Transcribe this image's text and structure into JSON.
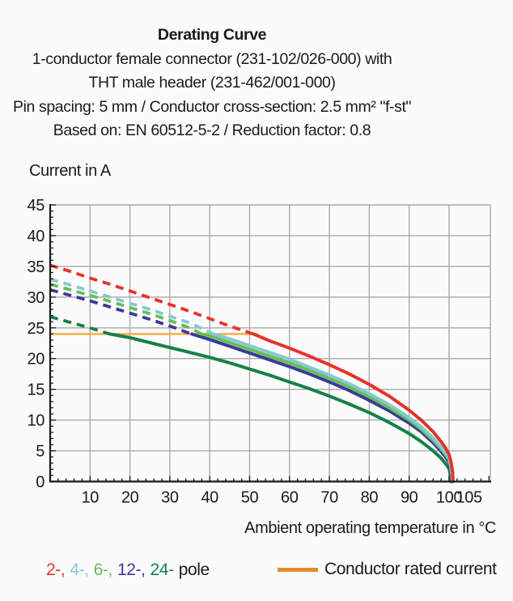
{
  "header": {
    "title": "Derating Curve",
    "line2": "1-conductor female connector (231-102/026-000) with",
    "line3": "THT male header (231-462/001-000)",
    "line4": "Pin spacing: 5 mm / Conductor cross-section: 2.5 mm² \"f-st\"",
    "line5": "Based on: EN 60512-5-2 / Reduction factor: 0.8"
  },
  "colors": {
    "background": "#fbfbfb",
    "grid": "#a9a9a9",
    "axis": "#1a1a1a",
    "text": "#1a1a1a",
    "pole2": "#E6332A",
    "pole4": "#82CAD2",
    "pole6": "#67BE54",
    "pole12": "#3A3A98",
    "pole24": "#168049",
    "rated_line": "#F7AF45",
    "rated_swatch": "#E78B2F"
  },
  "legend": {
    "pole_items": [
      {
        "label": "2-,",
        "color": "#E6332A"
      },
      {
        "label": "4-,",
        "color": "#82CAD2"
      },
      {
        "label": "6-,",
        "color": "#67BE54"
      },
      {
        "label": "12-,",
        "color": "#3A3A98"
      },
      {
        "label": "24-",
        "color": "#168049"
      },
      {
        "label": "pole",
        "color": "#1a1a1a"
      }
    ],
    "rated_label": "Conductor rated current"
  },
  "chart_data": {
    "type": "line",
    "title": "Derating Curve",
    "xlabel": "Ambient operating temperature in °C",
    "ylabel": "Current in A",
    "x_axis": {
      "min": 0,
      "max": 110.35,
      "major_tick_step": 10,
      "minor_tick_step": 2,
      "tick_labels": [
        10,
        20,
        30,
        40,
        50,
        60,
        70,
        80,
        90,
        100,
        105
      ]
    },
    "y_axis": {
      "min": 0,
      "max": 45,
      "major_tick_step": 5,
      "minor_tick_step": 1,
      "tick_labels": [
        0,
        5,
        10,
        15,
        20,
        25,
        30,
        35,
        40,
        45
      ]
    },
    "grid": true,
    "rated_current": {
      "value": 24,
      "x_start": 0,
      "x_end": 52,
      "label": "Conductor rated current"
    },
    "series": [
      {
        "name": "24-pole",
        "color": "#168049",
        "transition_temp": 15,
        "points": [
          [
            0,
            26.8
          ],
          [
            5,
            25.9
          ],
          [
            10,
            25.0
          ],
          [
            15,
            24.0
          ],
          [
            20,
            23.4
          ],
          [
            25,
            22.6
          ],
          [
            30,
            21.8
          ],
          [
            35,
            21.0
          ],
          [
            40,
            20.2
          ],
          [
            45,
            19.3
          ],
          [
            50,
            18.3
          ],
          [
            55,
            17.3
          ],
          [
            60,
            16.2
          ],
          [
            65,
            15.1
          ],
          [
            70,
            13.9
          ],
          [
            75,
            12.6
          ],
          [
            80,
            11.2
          ],
          [
            85,
            9.6
          ],
          [
            90,
            7.8
          ],
          [
            93,
            6.5
          ],
          [
            96,
            5.0
          ],
          [
            98,
            3.8
          ],
          [
            99,
            3.0
          ],
          [
            100,
            2.1
          ],
          [
            100.2,
            1.5
          ],
          [
            100.5,
            0
          ]
        ]
      },
      {
        "name": "12-pole",
        "color": "#3A3A98",
        "transition_temp": 35.5,
        "points": [
          [
            0,
            31.2
          ],
          [
            5,
            30.3
          ],
          [
            10,
            29.4
          ],
          [
            15,
            28.4
          ],
          [
            20,
            27.4
          ],
          [
            25,
            26.4
          ],
          [
            30,
            25.3
          ],
          [
            35,
            24.1
          ],
          [
            35.5,
            24.0
          ],
          [
            40,
            23.1
          ],
          [
            45,
            22.0
          ],
          [
            50,
            20.9
          ],
          [
            55,
            19.8
          ],
          [
            60,
            18.7
          ],
          [
            65,
            17.5
          ],
          [
            70,
            16.2
          ],
          [
            75,
            14.8
          ],
          [
            80,
            13.2
          ],
          [
            85,
            11.5
          ],
          [
            90,
            9.5
          ],
          [
            93,
            8.1
          ],
          [
            96,
            6.3
          ],
          [
            98,
            4.9
          ],
          [
            99,
            4.1
          ],
          [
            100,
            3.1
          ],
          [
            100.3,
            2.2
          ],
          [
            100.6,
            0.8
          ],
          [
            100.7,
            0
          ]
        ]
      },
      {
        "name": "6-pole",
        "color": "#67BE54",
        "transition_temp": 38,
        "points": [
          [
            0,
            32.1
          ],
          [
            5,
            31.2
          ],
          [
            10,
            30.3
          ],
          [
            15,
            29.3
          ],
          [
            20,
            28.3
          ],
          [
            25,
            27.3
          ],
          [
            30,
            26.2
          ],
          [
            35,
            25.0
          ],
          [
            38,
            24.0
          ],
          [
            40,
            23.7
          ],
          [
            45,
            22.6
          ],
          [
            50,
            21.5
          ],
          [
            55,
            20.4
          ],
          [
            60,
            19.3
          ],
          [
            65,
            18.1
          ],
          [
            70,
            16.8
          ],
          [
            75,
            15.4
          ],
          [
            80,
            13.8
          ],
          [
            85,
            12.0
          ],
          [
            90,
            10.0
          ],
          [
            93,
            8.5
          ],
          [
            96,
            6.7
          ],
          [
            98,
            5.3
          ],
          [
            99,
            4.5
          ],
          [
            100,
            3.5
          ],
          [
            100.4,
            2.5
          ],
          [
            100.7,
            1.0
          ],
          [
            100.8,
            0
          ]
        ]
      },
      {
        "name": "4-pole",
        "color": "#82CAD2",
        "transition_temp": 41,
        "points": [
          [
            0,
            32.9
          ],
          [
            5,
            32.0
          ],
          [
            10,
            31.0
          ],
          [
            15,
            30.0
          ],
          [
            20,
            29.0
          ],
          [
            25,
            28.0
          ],
          [
            30,
            26.9
          ],
          [
            35,
            25.8
          ],
          [
            40,
            24.3
          ],
          [
            41,
            24.0
          ],
          [
            45,
            23.2
          ],
          [
            50,
            22.1
          ],
          [
            55,
            21.0
          ],
          [
            60,
            19.9
          ],
          [
            65,
            18.6
          ],
          [
            70,
            17.3
          ],
          [
            75,
            15.9
          ],
          [
            80,
            14.3
          ],
          [
            85,
            12.5
          ],
          [
            90,
            10.4
          ],
          [
            93,
            8.9
          ],
          [
            96,
            7.1
          ],
          [
            98,
            5.6
          ],
          [
            99,
            4.8
          ],
          [
            100,
            3.8
          ],
          [
            100.4,
            2.8
          ],
          [
            100.8,
            1.2
          ],
          [
            100.9,
            0
          ]
        ]
      },
      {
        "name": "2-pole",
        "color": "#E6332A",
        "transition_temp": 51,
        "points": [
          [
            0,
            35.2
          ],
          [
            5,
            34.2
          ],
          [
            10,
            33.1
          ],
          [
            15,
            32.1
          ],
          [
            20,
            31.0
          ],
          [
            25,
            29.9
          ],
          [
            30,
            28.8
          ],
          [
            35,
            27.7
          ],
          [
            40,
            26.5
          ],
          [
            45,
            25.3
          ],
          [
            50,
            24.2
          ],
          [
            51,
            24.0
          ],
          [
            55,
            22.9
          ],
          [
            60,
            21.7
          ],
          [
            65,
            20.4
          ],
          [
            70,
            19.0
          ],
          [
            75,
            17.5
          ],
          [
            80,
            15.8
          ],
          [
            85,
            13.9
          ],
          [
            90,
            11.6
          ],
          [
            93,
            10.0
          ],
          [
            96,
            8.1
          ],
          [
            98,
            6.5
          ],
          [
            99,
            5.6
          ],
          [
            100,
            4.4
          ],
          [
            100.5,
            3.2
          ],
          [
            100.9,
            1.5
          ],
          [
            101,
            0
          ]
        ]
      }
    ]
  }
}
